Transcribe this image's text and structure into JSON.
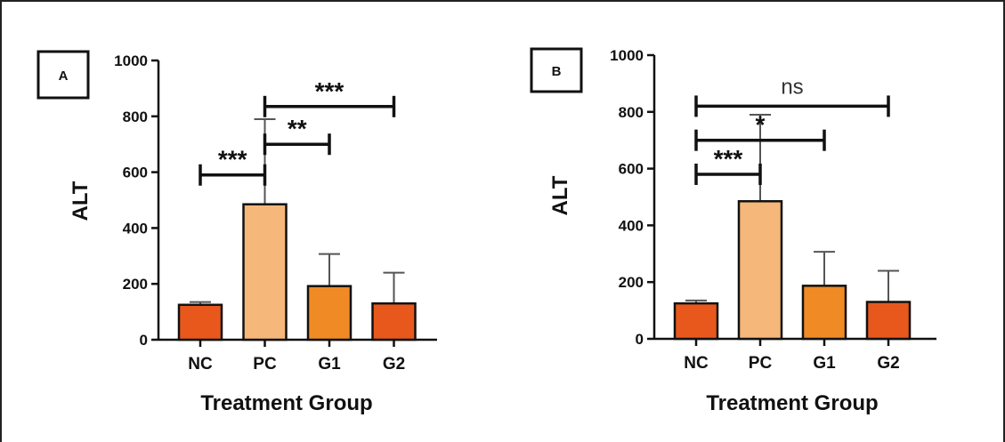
{
  "chart_data": [
    {
      "type": "bar",
      "panel_label": "A",
      "categories": [
        "NC",
        "PC",
        "G1",
        "G2"
      ],
      "values": [
        125,
        485,
        192,
        130
      ],
      "errors": [
        10,
        305,
        115,
        110
      ],
      "bar_colors": [
        "#e8581c",
        "#f5b77a",
        "#f08a24",
        "#e8581c"
      ],
      "xlabel": "Treatment Group",
      "ylabel": "ALT",
      "ylim": [
        0,
        1000
      ],
      "yticks": [
        0,
        200,
        400,
        600,
        800,
        1000
      ],
      "grid": false,
      "comparisons": [
        {
          "from": "NC",
          "to": "PC",
          "label": "***",
          "y": 590
        },
        {
          "from": "PC",
          "to": "G1",
          "label": "**",
          "y": 700
        },
        {
          "from": "PC",
          "to": "G2",
          "label": "***",
          "y": 835
        }
      ]
    },
    {
      "type": "bar",
      "panel_label": "B",
      "categories": [
        "NC",
        "PC",
        "G1",
        "G2"
      ],
      "values": [
        125,
        485,
        187,
        130
      ],
      "errors": [
        10,
        305,
        120,
        110
      ],
      "bar_colors": [
        "#e8581c",
        "#f5b77a",
        "#f08a24",
        "#e8581c"
      ],
      "xlabel": "Treatment Group",
      "ylabel": "ALT",
      "ylim": [
        0,
        1000
      ],
      "yticks": [
        0,
        200,
        400,
        600,
        800,
        1000
      ],
      "grid": false,
      "comparisons": [
        {
          "from": "NC",
          "to": "PC",
          "label": "***",
          "y": 580
        },
        {
          "from": "NC",
          "to": "G1",
          "label": "*",
          "y": 700
        },
        {
          "from": "NC",
          "to": "G2",
          "label": "ns",
          "y": 820
        }
      ]
    }
  ]
}
